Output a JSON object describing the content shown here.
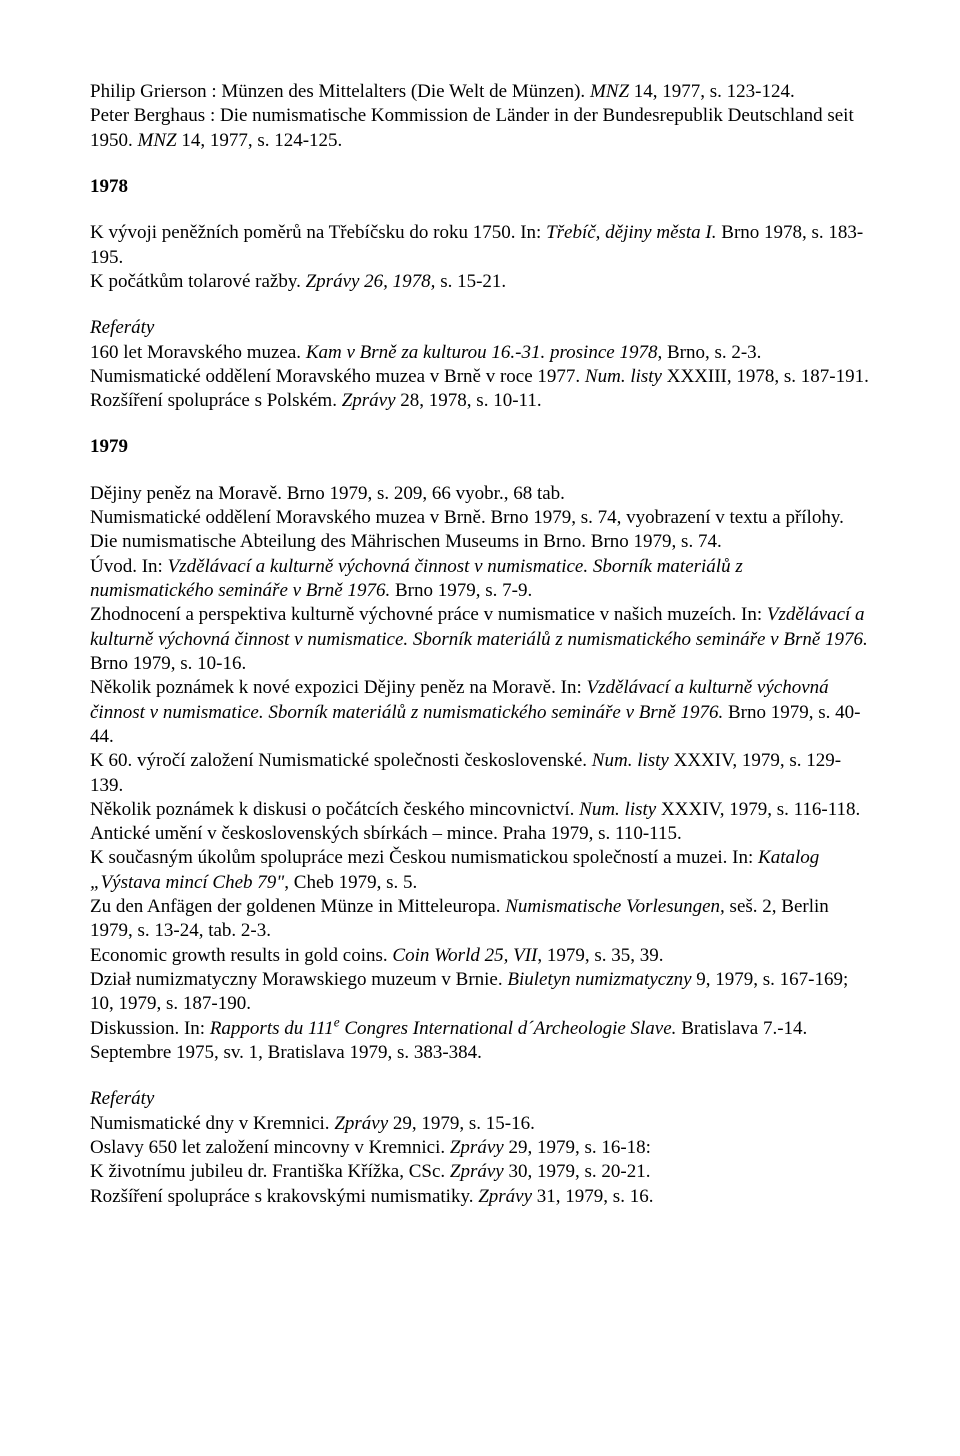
{
  "entries": {
    "e1": "Philip Grierson : Münzen des Mittelalters (Die Welt de Münzen). ",
    "e1_it": "MNZ",
    "e1b": " 14, 1977, s. 123-124.",
    "e2": "Peter Berghaus : Die numismatische Kommission de Länder in der Bundesrepublik Deutschland seit 1950. ",
    "e2_it": "MNZ",
    "e2b": " 14, 1977, s. 124-125.",
    "y1978": "1978",
    "e3": "K vývoji peněžních poměrů na Třebíčsku do roku 1750. In: ",
    "e3_it": "Třebíč, dějiny města I.",
    "e3b": " Brno 1978, s. 183-195.",
    "e4": "K počátkům tolarové ražby. ",
    "e4_it": "Zprávy 26, 1978,",
    "e4b": " s. 15-21.",
    "ref": "Referáty",
    "e5": "160 let Moravského muzea. ",
    "e5_it": "Kam v Brně za kulturou 16.-31. prosince 1978",
    "e5b": ", Brno, s. 2-3.",
    "e6": "Numismatické oddělení Moravského muzea v Brně v roce 1977. ",
    "e6_it": "Num. listy",
    "e6b": " XXXIII, 1978, s. 187-191.",
    "e7": "Rozšíření spolupráce s Polském. ",
    "e7_it": "Zprávy",
    "e7b": " 28, 1978, s. 10-11.",
    "y1979": "1979",
    "e8": "Dějiny peněz na Moravě. Brno 1979, s. 209, 66 vyobr., 68 tab.",
    "e9": "Numismatické oddělení Moravského muzea v Brně. Brno 1979, s. 74, vyobrazení v textu a přílohy.",
    "e10": "Die numismatische Abteilung des Mährischen Museums in Brno. Brno 1979, s. 74.",
    "e11": "Úvod. In: ",
    "e11_it": "Vzdělávací a kulturně výchovná činnost v numismatice. Sborník materiálů z numismatického semináře v Brně 1976.",
    "e11b": " Brno 1979, s. 7-9.",
    "e12": "Zhodnocení a perspektiva kulturně výchovné práce v numismatice v našich muzeích. In: ",
    "e12_it": "Vzdělávací a kulturně výchovná činnost v numismatice. Sborník materiálů z numismatického semináře v Brně 1976.",
    "e12b": " Brno 1979, s. 10-16.",
    "e13": "Několik poznámek k nové expozici Dějiny peněz na Moravě. In: ",
    "e13_it": "Vzdělávací a kulturně výchovná činnost v numismatice. Sborník materiálů z numismatického semináře v Brně 1976.",
    "e13b": " Brno 1979, s. 40-44.",
    "e14": "K 60. výročí založení Numismatické společnosti československé. ",
    "e14_it": "Num. listy",
    "e14b": " XXXIV, 1979, s. 129-139.",
    "e15": "Několik poznámek k diskusi o počátcích českého mincovnictví. ",
    "e15_it": "Num. listy",
    "e15b": " XXXIV, 1979, s. 116-118.",
    "e16": "Antické umění v československých sbírkách – mince. Praha 1979, s. 110-115.",
    "e17": "K současným úkolům spolupráce mezi Českou numismatickou společností a muzei. In: ",
    "e17_it": "Katalog „Výstava mincí Cheb 79\"",
    "e17b": ", Cheb 1979, s. 5.",
    "e18": "Zu den Anfägen der goldenen Münze in Mitteleuropa. ",
    "e18_it": "Numismatische Vorlesungen,",
    "e18b": " seš. 2, Berlin 1979, s. 13-24, tab. 2-3.",
    "e19": "Economic growth results in gold coins. ",
    "e19_it": "Coin World 25, VII",
    "e19b": ", 1979, s. 35, 39.",
    "e20": "Dział numizmatyczny Morawskiego muzeum v Brnie. ",
    "e20_it": "Biuletyn numizmatyczny",
    "e20b": " 9, 1979, s. 167-169; 10, 1979, s. 187-190.",
    "e21": "Diskussion. In: ",
    "e21_it": "Rapports du 111",
    "e21_sup": "e",
    "e21_it2": " Congres International d´Archeologie Slave.",
    "e21b": " Bratislava 7.-14. Septembre 1975, sv. 1, Bratislava 1979, s. 383-384.",
    "e22": "Numismatické dny v Kremnici. ",
    "e22_it": "Zprávy",
    "e22b": " 29, 1979, s. 15-16.",
    "e23": "Oslavy 650 let založení mincovny v Kremnici. ",
    "e23_it": "Zprávy",
    "e23b": " 29, 1979, s. 16-18:",
    "e24": "K životnímu jubileu dr. Františka Křížka, CSc. ",
    "e24_it": "Zprávy",
    "e24b": " 30, 1979, s. 20-21.",
    "e25": "Rozšíření spolupráce s krakovskými numismatiky. ",
    "e25_it": "Zprávy",
    "e25b": " 31, 1979, s. 16."
  }
}
